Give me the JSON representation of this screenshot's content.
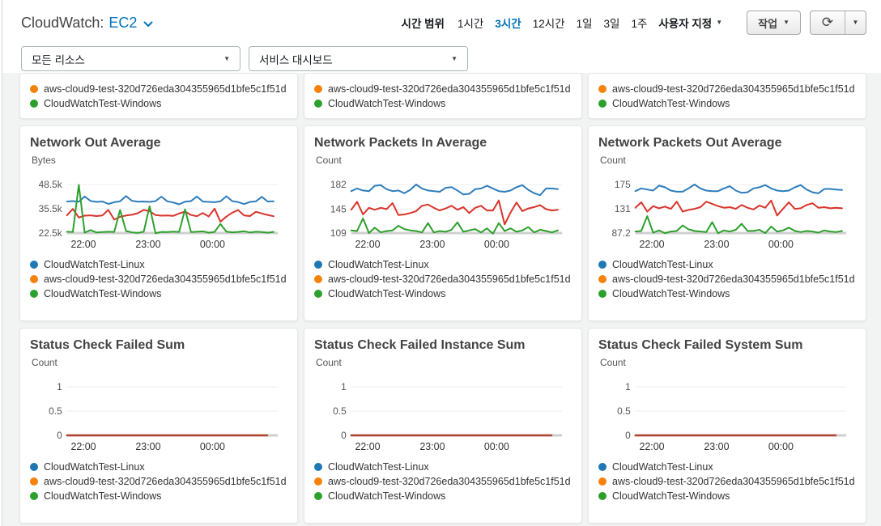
{
  "header": {
    "title_prefix": "CloudWatch:",
    "title_service": "EC2",
    "time_range": {
      "label": "시간 범위",
      "options": [
        "1시간",
        "3시간",
        "12시간",
        "1일",
        "3일",
        "1주"
      ],
      "selected": "3시간",
      "custom_label": "사용자 지정"
    },
    "actions_button": "작업",
    "resource_filter": "모든 리소스",
    "dashboard_select": "서비스 대시보드"
  },
  "icons": {
    "caret_down": "▼",
    "refresh": "⟳"
  },
  "colors": {
    "accent_blue": "#0073bb",
    "page_background": "#f2f3f3",
    "series_blue": "#2e7dbc",
    "series_red": "#d9342b",
    "series_green": "#2ca02c",
    "status_line": "#b1442e",
    "legend_blue": "#1f77b4",
    "legend_orange": "#f5820d",
    "legend_green": "#2ca02c"
  },
  "legend": {
    "items": [
      {
        "label": "CloudWatchTest-Linux",
        "color": "#1f77b4"
      },
      {
        "label": "aws-cloud9-test-320d726eda304355965d1bfe5c1f51d",
        "color": "#f5820d"
      },
      {
        "label": "CloudWatchTest-Windows",
        "color": "#2ca02c"
      }
    ]
  },
  "chart_data": [
    {
      "type": "line",
      "title": "Network Out Average",
      "ylabel": "Bytes",
      "yticks": [
        {
          "label": "48.5k",
          "value": 48500
        },
        {
          "label": "35.5k",
          "value": 35500
        },
        {
          "label": "22.5k",
          "value": 22500
        }
      ],
      "xticks": [
        "22:00",
        "23:00",
        "00:00"
      ],
      "x_range": [
        "21:45",
        "01:00"
      ],
      "x_end_frac": 0.98,
      "series": [
        {
          "name": "CloudWatchTest-Linux",
          "color": "#2e7dbc",
          "values": [
            39400,
            39600,
            39300,
            42100,
            39700,
            39200,
            39400,
            38100,
            39000,
            39500,
            42300,
            39800,
            39300,
            39400,
            39200,
            39600,
            42000,
            39500,
            38900,
            37900,
            39300,
            39600,
            42100,
            39400,
            39200,
            39000,
            39500,
            42200,
            39600,
            39100,
            38000,
            39200,
            39500,
            41900,
            39400,
            39500
          ]
        },
        {
          "name": "aws-cloud9-test-320d726eda304355965d1bfe5c1f51d",
          "color": "#d9342b",
          "values": [
            32000,
            35400,
            30800,
            31800,
            32000,
            31600,
            31900,
            34900,
            29700,
            31200,
            31900,
            32300,
            33100,
            34900,
            34200,
            32100,
            31800,
            31900,
            31700,
            33000,
            34000,
            32200,
            31500,
            33200,
            31400,
            35600,
            28600,
            31300,
            33400,
            34800,
            31900,
            31600,
            33900,
            33000,
            32200,
            31500
          ]
        },
        {
          "name": "CloudWatchTest-Windows",
          "color": "#2ca02c",
          "values": [
            23200,
            23100,
            48300,
            22700,
            24100,
            22800,
            23000,
            23200,
            23100,
            34800,
            23600,
            22900,
            22600,
            23200,
            36900,
            22400,
            23100,
            23000,
            23300,
            23100,
            35200,
            23000,
            23200,
            23400,
            22700,
            23100,
            27400,
            23300,
            22900,
            23100,
            23500,
            22800,
            23200,
            23000,
            22700,
            23100
          ]
        }
      ]
    },
    {
      "type": "line",
      "title": "Network Packets In Average",
      "ylabel": "Count",
      "yticks": [
        {
          "label": "182",
          "value": 182
        },
        {
          "label": "145",
          "value": 145
        },
        {
          "label": "109",
          "value": 109
        }
      ],
      "xticks": [
        "22:00",
        "23:00",
        "00:00"
      ],
      "x_range": [
        "21:45",
        "01:00"
      ],
      "x_end_frac": 0.98,
      "series": [
        {
          "name": "CloudWatchTest-Linux",
          "color": "#2e7dbc",
          "values": [
            172,
            176,
            173,
            172,
            180,
            181,
            175,
            172,
            173,
            169,
            174,
            182,
            176,
            173,
            172,
            171,
            177,
            178,
            173,
            167,
            168,
            175,
            176,
            180,
            176,
            172,
            171,
            173,
            178,
            181,
            174,
            169,
            166,
            176,
            176,
            175
          ]
        },
        {
          "name": "aws-cloud9-test-320d726eda304355965d1bfe5c1f51d",
          "color": "#d9342b",
          "values": [
            144,
            156,
            137,
            147,
            144,
            147,
            145,
            154,
            136,
            137,
            139,
            142,
            150,
            152,
            147,
            143,
            146,
            150,
            144,
            148,
            139,
            147,
            150,
            143,
            143,
            158,
            122,
            140,
            155,
            142,
            146,
            148,
            151,
            145,
            143,
            144
          ]
        },
        {
          "name": "CloudWatchTest-Windows",
          "color": "#2ca02c",
          "values": [
            113,
            112,
            131,
            109,
            117,
            110,
            112,
            113,
            120,
            115,
            113,
            112,
            110,
            124,
            110,
            112,
            111,
            114,
            125,
            111,
            113,
            115,
            110,
            116,
            108,
            124,
            112,
            116,
            111,
            113,
            118,
            110,
            114,
            112,
            110,
            113
          ]
        }
      ]
    },
    {
      "type": "line",
      "title": "Network Packets Out Average",
      "ylabel": "Count",
      "yticks": [
        {
          "label": "175",
          "value": 175
        },
        {
          "label": "131",
          "value": 131
        },
        {
          "label": "87.2",
          "value": 87.2
        }
      ],
      "xticks": [
        "22:00",
        "23:00",
        "00:00"
      ],
      "x_range": [
        "21:45",
        "01:00"
      ],
      "x_end_frac": 0.98,
      "series": [
        {
          "name": "CloudWatchTest-Linux",
          "color": "#2e7dbc",
          "values": [
            163,
            168,
            166,
            164,
            173,
            170,
            164,
            162,
            162,
            168,
            175,
            168,
            164,
            163,
            163,
            168,
            172,
            164,
            160,
            161,
            168,
            170,
            174,
            168,
            164,
            163,
            164,
            170,
            174,
            166,
            161,
            159,
            167,
            167,
            166,
            165
          ]
        },
        {
          "name": "aws-cloud9-test-320d726eda304355965d1bfe5c1f51d",
          "color": "#d9342b",
          "values": [
            133,
            143,
            126,
            136,
            132,
            135,
            131,
            144,
            126,
            129,
            131,
            134,
            144,
            140,
            136,
            133,
            134,
            131,
            138,
            133,
            130,
            137,
            133,
            146,
            119,
            131,
            143,
            131,
            132,
            138,
            141,
            133,
            134,
            132,
            133,
            132
          ]
        },
        {
          "name": "CloudWatchTest-Windows",
          "color": "#2ca02c",
          "values": [
            90,
            91,
            118,
            88,
            92,
            87,
            90,
            91,
            101,
            94,
            91,
            90,
            89,
            107,
            87,
            92,
            90,
            93,
            104,
            91,
            91,
            93,
            87,
            99,
            90,
            92,
            97,
            91,
            89,
            91,
            90,
            88,
            92,
            90,
            89,
            91
          ]
        }
      ]
    },
    {
      "type": "line",
      "title": "Status Check Failed Sum",
      "ylabel": "Count",
      "yticks": [
        {
          "label": "1",
          "value": 1
        },
        {
          "label": "0.5",
          "value": 0.5
        },
        {
          "label": "0",
          "value": 0
        }
      ],
      "xticks": [
        "22:00",
        "23:00",
        "00:00"
      ],
      "x_range": [
        "21:45",
        "01:00"
      ],
      "x_end_frac": 0.95,
      "series": [
        {
          "name": "CloudWatchTest-Linux",
          "color": "#2e7dbc",
          "values": [
            0,
            0,
            0,
            0,
            0,
            0,
            0,
            0,
            0,
            0,
            0,
            0
          ]
        },
        {
          "name": "CloudWatchTest-Windows",
          "color": "#2ca02c",
          "values": [
            0,
            0,
            0,
            0,
            0,
            0,
            0,
            0,
            0,
            0,
            0,
            0
          ]
        },
        {
          "name": "aws-cloud9-test-320d726eda304355965d1bfe5c1f51d",
          "color": "#b1442e",
          "stroke_width": 2.5,
          "values": [
            0,
            0,
            0,
            0,
            0,
            0,
            0,
            0,
            0,
            0,
            0,
            0
          ]
        }
      ]
    },
    {
      "type": "line",
      "title": "Status Check Failed Instance Sum",
      "ylabel": "Count",
      "yticks": [
        {
          "label": "1",
          "value": 1
        },
        {
          "label": "0.5",
          "value": 0.5
        },
        {
          "label": "0",
          "value": 0
        }
      ],
      "xticks": [
        "22:00",
        "23:00",
        "00:00"
      ],
      "x_range": [
        "21:45",
        "01:00"
      ],
      "x_end_frac": 0.95,
      "series": [
        {
          "name": "CloudWatchTest-Linux",
          "color": "#2e7dbc",
          "values": [
            0,
            0,
            0,
            0,
            0,
            0,
            0,
            0,
            0,
            0,
            0,
            0
          ]
        },
        {
          "name": "CloudWatchTest-Windows",
          "color": "#2ca02c",
          "values": [
            0,
            0,
            0,
            0,
            0,
            0,
            0,
            0,
            0,
            0,
            0,
            0
          ]
        },
        {
          "name": "aws-cloud9-test-320d726eda304355965d1bfe5c1f51d",
          "color": "#b1442e",
          "stroke_width": 2.5,
          "values": [
            0,
            0,
            0,
            0,
            0,
            0,
            0,
            0,
            0,
            0,
            0,
            0
          ]
        }
      ]
    },
    {
      "type": "line",
      "title": "Status Check Failed System Sum",
      "ylabel": "Count",
      "yticks": [
        {
          "label": "1",
          "value": 1
        },
        {
          "label": "0.5",
          "value": 0.5
        },
        {
          "label": "0",
          "value": 0
        }
      ],
      "xticks": [
        "22:00",
        "23:00",
        "00:00"
      ],
      "x_range": [
        "21:45",
        "01:00"
      ],
      "x_end_frac": 0.95,
      "series": [
        {
          "name": "CloudWatchTest-Linux",
          "color": "#2e7dbc",
          "values": [
            0,
            0,
            0,
            0,
            0,
            0,
            0,
            0,
            0,
            0,
            0,
            0
          ]
        },
        {
          "name": "CloudWatchTest-Windows",
          "color": "#2ca02c",
          "values": [
            0,
            0,
            0,
            0,
            0,
            0,
            0,
            0,
            0,
            0,
            0,
            0
          ]
        },
        {
          "name": "aws-cloud9-test-320d726eda304355965d1bfe5c1f51d",
          "color": "#b1442e",
          "stroke_width": 2.5,
          "values": [
            0,
            0,
            0,
            0,
            0,
            0,
            0,
            0,
            0,
            0,
            0,
            0
          ]
        }
      ]
    }
  ]
}
